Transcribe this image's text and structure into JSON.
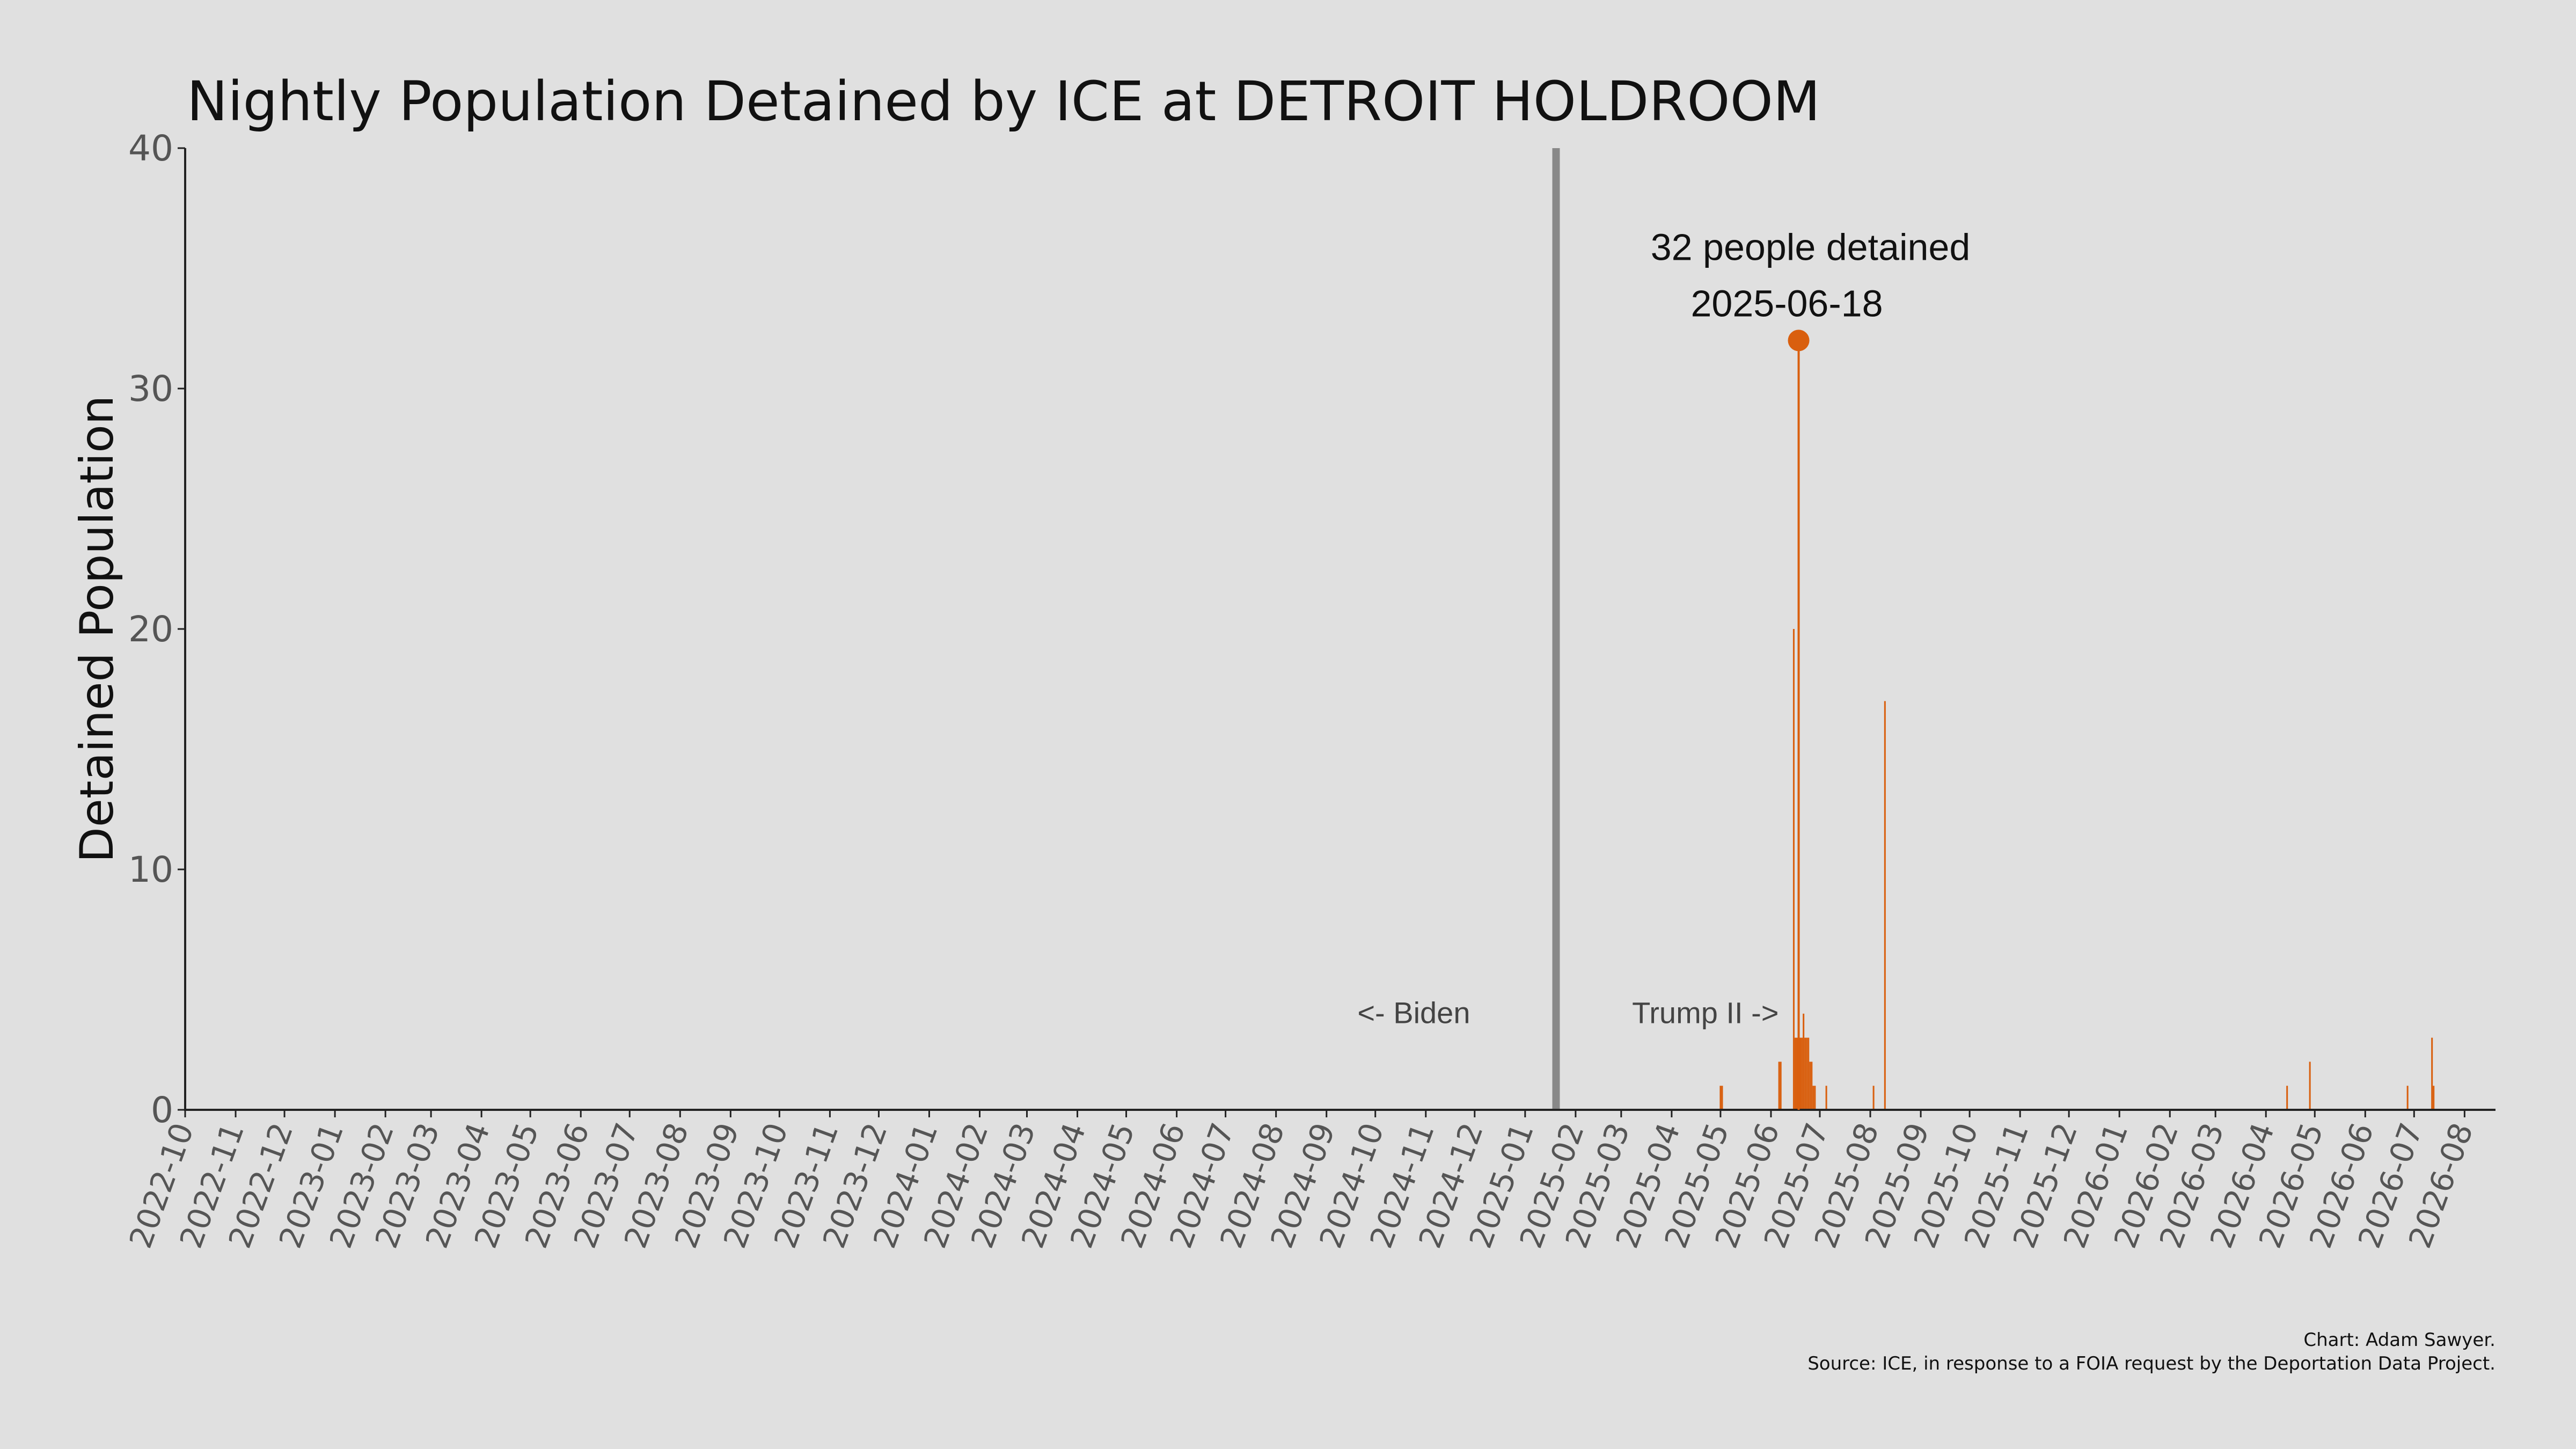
{
  "chart_data": {
    "type": "bar",
    "title": "Nightly Population Detained by ICE at DETROIT HOLDROOM",
    "xlabel": "",
    "ylabel": "Detained Population",
    "ylim": [
      0,
      40
    ],
    "yticks": [
      0,
      10,
      20,
      30,
      40
    ],
    "xlim": [
      "2022-10-01",
      "2026-08-20"
    ],
    "x_tick_labels": [
      "2022-10",
      "2022-11",
      "2022-12",
      "2023-01",
      "2023-02",
      "2023-03",
      "2023-04",
      "2023-05",
      "2023-06",
      "2023-07",
      "2023-08",
      "2023-09",
      "2023-10",
      "2023-11",
      "2023-12",
      "2024-01",
      "2024-02",
      "2024-03",
      "2024-04",
      "2024-05",
      "2024-06",
      "2024-07",
      "2024-08",
      "2024-09",
      "2024-10",
      "2024-11",
      "2024-12",
      "2025-01",
      "2025-02",
      "2025-03",
      "2025-04",
      "2025-05",
      "2025-06",
      "2025-07",
      "2025-08",
      "2025-09",
      "2025-10",
      "2025-11",
      "2025-12",
      "2026-01",
      "2026-02",
      "2026-03",
      "2026-04",
      "2026-05",
      "2026-06",
      "2026-07",
      "2026-08"
    ],
    "grid": false,
    "bar_color": "#d95f0e",
    "divider": {
      "date": "2025-01-20",
      "color": "#888888"
    },
    "series": [
      {
        "x": [
          "2025-05-01",
          "2025-05-02",
          "2025-06-06",
          "2025-06-07",
          "2025-06-15",
          "2025-06-16",
          "2025-06-17",
          "2025-06-18",
          "2025-06-19",
          "2025-06-20",
          "2025-06-21",
          "2025-06-22",
          "2025-06-23",
          "2025-06-24",
          "2025-06-25",
          "2025-06-26",
          "2025-06-27",
          "2025-06-28",
          "2025-07-05",
          "2025-08-03",
          "2025-08-10",
          "2026-04-14",
          "2026-04-28",
          "2026-06-27",
          "2026-07-12",
          "2026-07-13"
        ],
        "values": [
          1,
          1,
          2,
          2,
          20,
          3,
          3,
          32,
          3,
          3,
          4,
          3,
          3,
          3,
          2,
          2,
          1,
          1,
          1,
          1,
          17,
          1,
          2,
          1,
          3,
          1
        ]
      }
    ],
    "annotations": {
      "peak_line1": "32 people detained",
      "peak_line2": "2025-06-18",
      "peak_date": "2025-06-18",
      "peak_value": 32,
      "biden": "<- Biden",
      "trump": "Trump II ->"
    },
    "caption": {
      "line1": "Chart: Adam Sawyer.",
      "line2": "Source: ICE, in response to a FOIA request by the Deportation Data Project."
    }
  }
}
